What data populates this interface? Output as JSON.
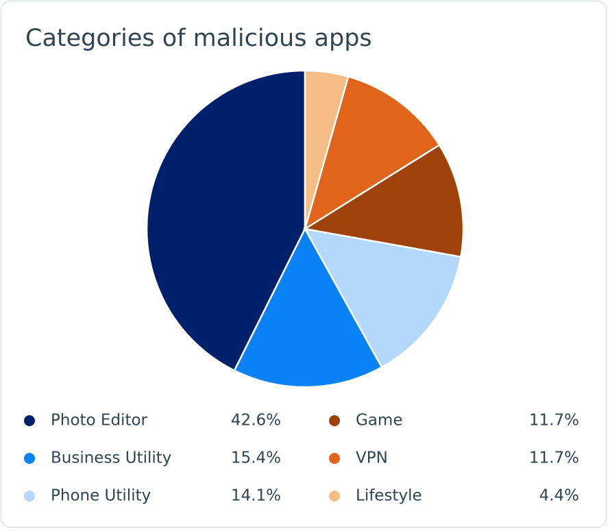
{
  "chart_data": {
    "type": "pie",
    "title": "Categories of malicious apps",
    "categories": [
      "Photo Editor",
      "Business Utility",
      "Phone Utility",
      "Game",
      "VPN",
      "Lifestyle"
    ],
    "values": [
      42.6,
      15.4,
      14.1,
      11.7,
      11.7,
      4.4
    ],
    "value_labels": [
      "42.6%",
      "15.4%",
      "14.1%",
      "11.7%",
      "11.7%",
      "4.4%"
    ],
    "colors": [
      "#00206b",
      "#0a82f5",
      "#b3d8fc",
      "#9e4209",
      "#e0651a",
      "#f7bd87"
    ]
  }
}
